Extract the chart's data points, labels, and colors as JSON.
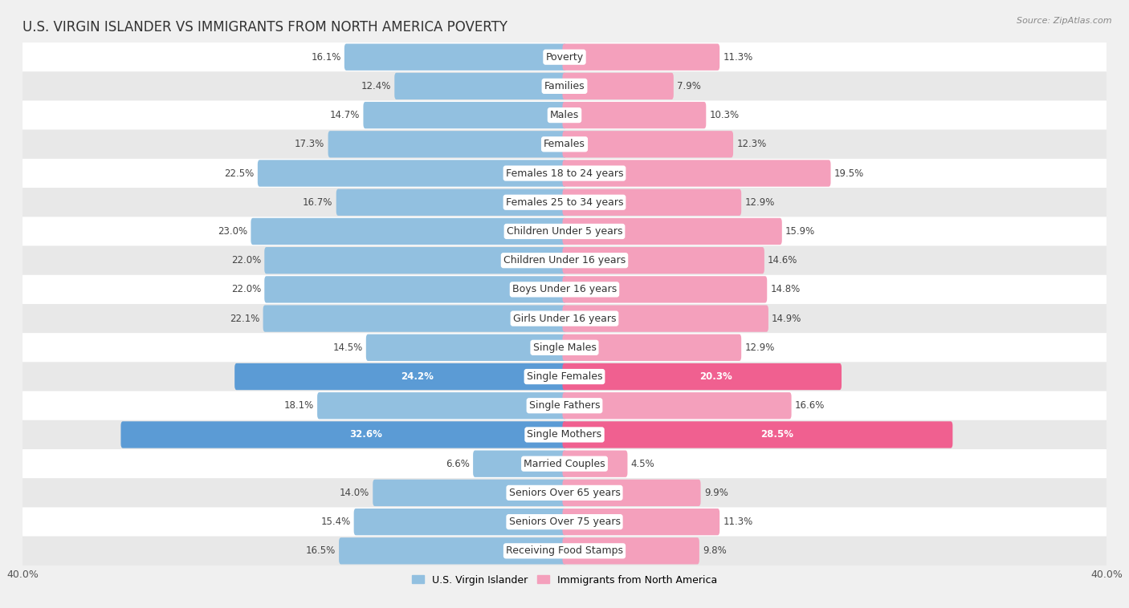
{
  "title": "U.S. VIRGIN ISLANDER VS IMMIGRANTS FROM NORTH AMERICA POVERTY",
  "source": "Source: ZipAtlas.com",
  "categories": [
    "Poverty",
    "Families",
    "Males",
    "Females",
    "Females 18 to 24 years",
    "Females 25 to 34 years",
    "Children Under 5 years",
    "Children Under 16 years",
    "Boys Under 16 years",
    "Girls Under 16 years",
    "Single Males",
    "Single Females",
    "Single Fathers",
    "Single Mothers",
    "Married Couples",
    "Seniors Over 65 years",
    "Seniors Over 75 years",
    "Receiving Food Stamps"
  ],
  "left_values": [
    16.1,
    12.4,
    14.7,
    17.3,
    22.5,
    16.7,
    23.0,
    22.0,
    22.0,
    22.1,
    14.5,
    24.2,
    18.1,
    32.6,
    6.6,
    14.0,
    15.4,
    16.5
  ],
  "right_values": [
    11.3,
    7.9,
    10.3,
    12.3,
    19.5,
    12.9,
    15.9,
    14.6,
    14.8,
    14.9,
    12.9,
    20.3,
    16.6,
    28.5,
    4.5,
    9.9,
    11.3,
    9.8
  ],
  "left_color": "#92c0e0",
  "right_color": "#f4a0bc",
  "left_label": "U.S. Virgin Islander",
  "right_label": "Immigrants from North America",
  "bar_height": 0.62,
  "xlim": 40.0,
  "bg_color": "#f0f0f0",
  "row_colors": [
    "#ffffff",
    "#e8e8e8"
  ],
  "title_fontsize": 12,
  "label_fontsize": 9,
  "value_fontsize": 8.5,
  "highlight_rows": [
    11,
    13
  ],
  "highlight_left_color": "#5b9bd5",
  "highlight_right_color": "#f06090"
}
